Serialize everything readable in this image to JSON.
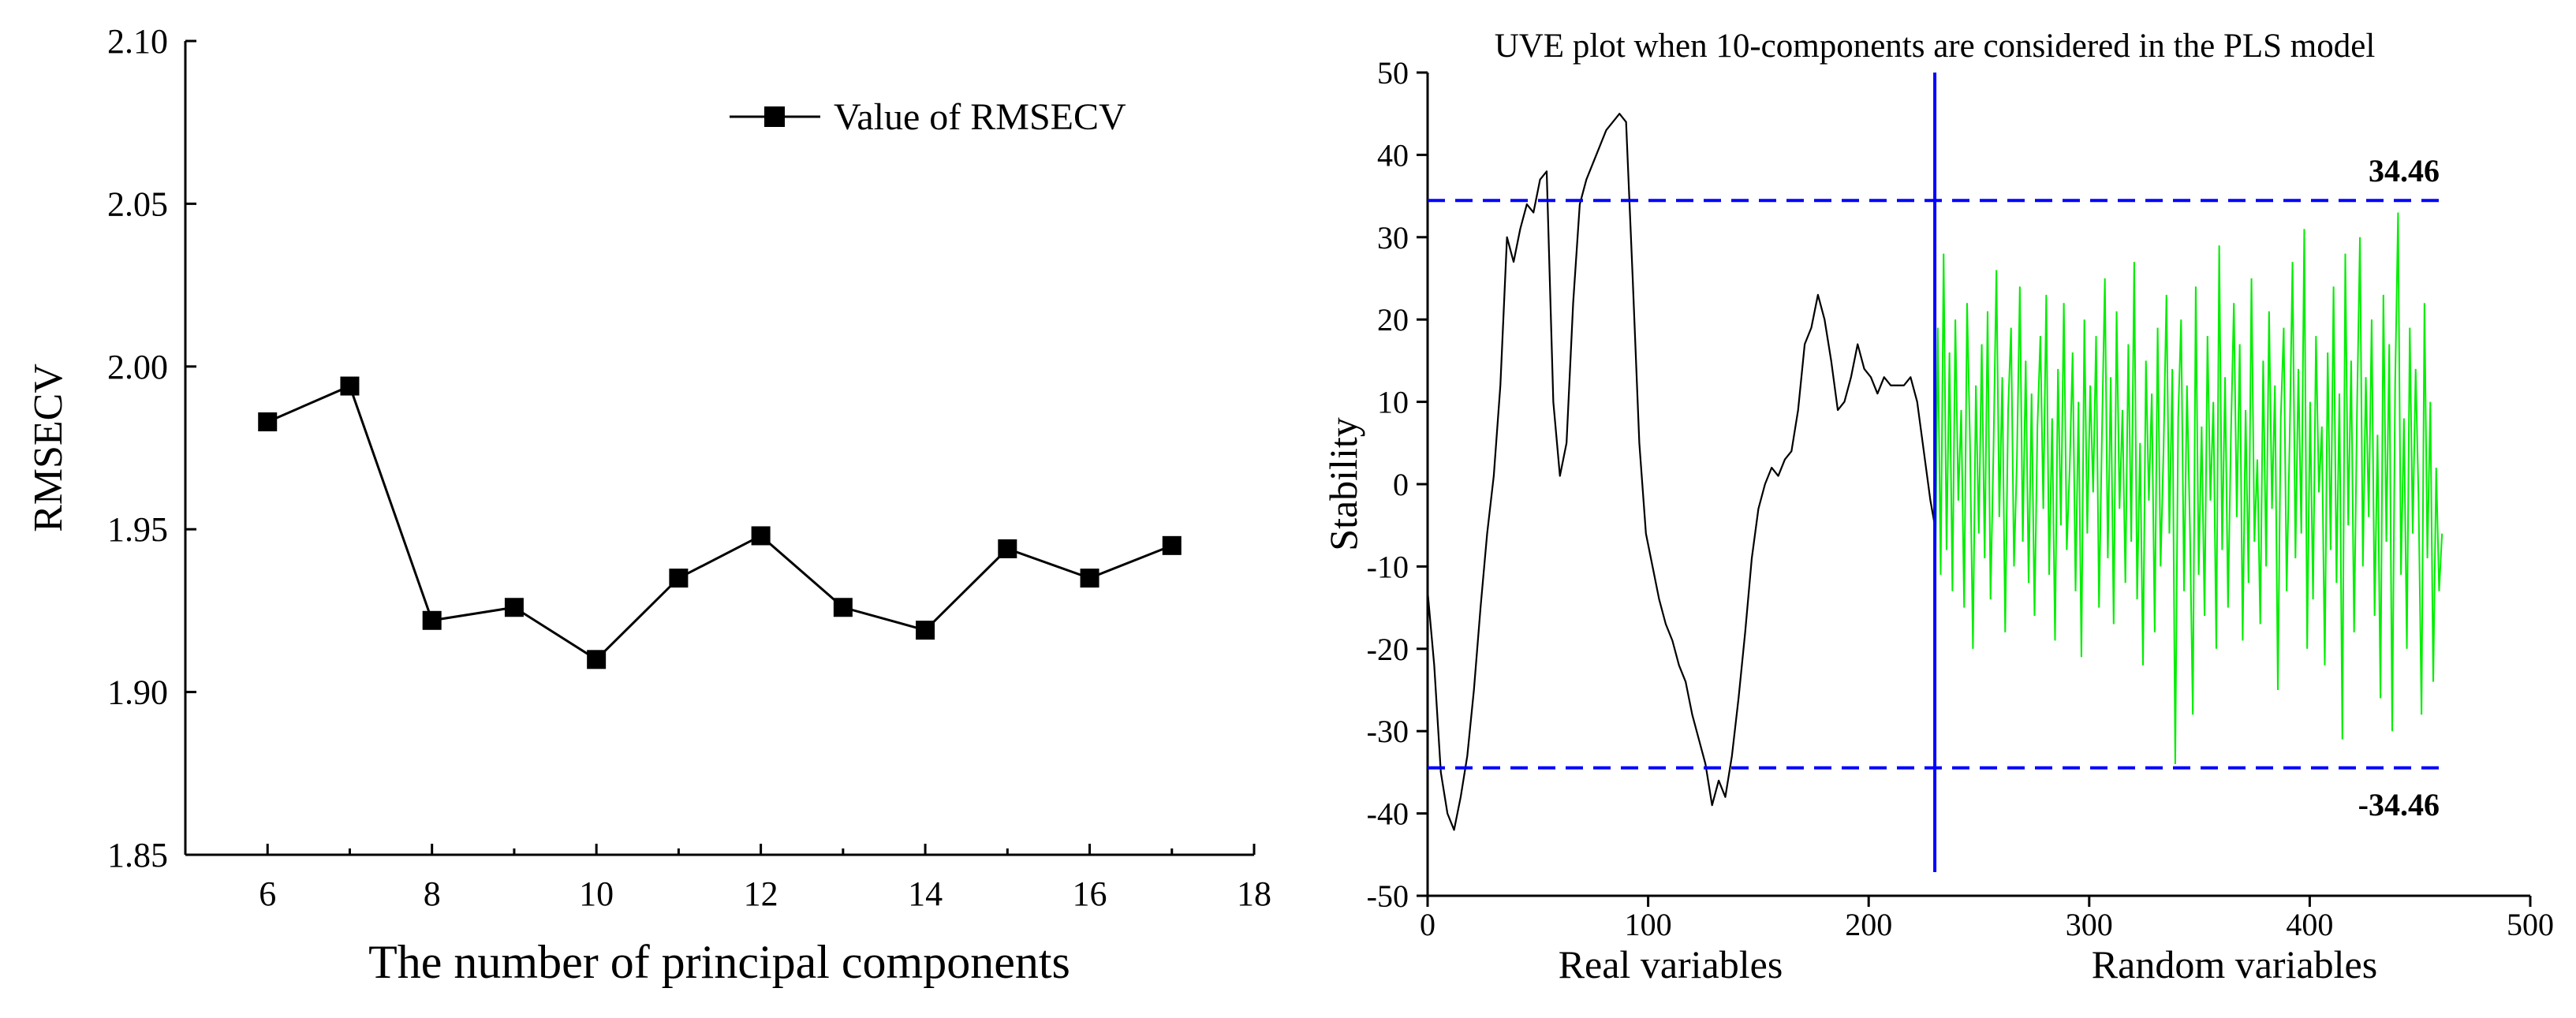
{
  "chart_data": [
    {
      "type": "line",
      "title": "",
      "xlabel": "The number of principal components",
      "ylabel": "RMSECV",
      "xlim": [
        5,
        18
      ],
      "ylim": [
        1.85,
        2.1
      ],
      "x_ticks": [
        {
          "v": 6,
          "label": "6"
        },
        {
          "v": 8,
          "label": "8"
        },
        {
          "v": 10,
          "label": "10"
        },
        {
          "v": 12,
          "label": "12"
        },
        {
          "v": 14,
          "label": "14"
        },
        {
          "v": 16,
          "label": "16"
        },
        {
          "v": 18,
          "label": "18"
        }
      ],
      "y_ticks": [
        {
          "v": 1.85,
          "label": "1.85"
        },
        {
          "v": 1.9,
          "label": "1.90"
        },
        {
          "v": 1.95,
          "label": "1.95"
        },
        {
          "v": 2.0,
          "label": "2.00"
        },
        {
          "v": 2.05,
          "label": "2.05"
        },
        {
          "v": 2.1,
          "label": "2.10"
        }
      ],
      "legend": "Value of RMSECV",
      "legend_position": "top-right",
      "series": [
        {
          "name": "Value of RMSECV",
          "color": "#000000",
          "x": [
            6,
            7,
            8,
            9,
            10,
            11,
            12,
            13,
            14,
            15,
            16,
            17
          ],
          "y": [
            1.983,
            1.994,
            1.922,
            1.926,
            1.91,
            1.935,
            1.948,
            1.926,
            1.919,
            1.944,
            1.935,
            1.945
          ]
        }
      ]
    },
    {
      "type": "line",
      "title": "UVE plot when 10-components are considered in the PLS model",
      "xlabel_left": "Real variables",
      "xlabel_right": "Random variables",
      "ylabel": "Stability",
      "xlim": [
        0,
        500
      ],
      "ylim": [
        -50,
        50
      ],
      "x_ticks": [
        {
          "v": 0,
          "label": "0"
        },
        {
          "v": 100,
          "label": "100"
        },
        {
          "v": 200,
          "label": "200"
        },
        {
          "v": 300,
          "label": "300"
        },
        {
          "v": 400,
          "label": "400"
        },
        {
          "v": 500,
          "label": "500"
        }
      ],
      "y_ticks": [
        {
          "v": -50,
          "label": "-50"
        },
        {
          "v": -40,
          "label": "-40"
        },
        {
          "v": -30,
          "label": "-30"
        },
        {
          "v": -20,
          "label": "-20"
        },
        {
          "v": -10,
          "label": "-10"
        },
        {
          "v": 0,
          "label": "0"
        },
        {
          "v": 10,
          "label": "10"
        },
        {
          "v": 20,
          "label": "20"
        },
        {
          "v": 30,
          "label": "30"
        },
        {
          "v": 40,
          "label": "40"
        },
        {
          "v": 50,
          "label": "50"
        }
      ],
      "threshold_upper": 34.46,
      "threshold_lower": -34.46,
      "threshold_upper_label": "34.46",
      "threshold_lower_label": "-34.46",
      "divider_x": 230,
      "divider_color": "#0000ff",
      "threshold_color": "#0000ff",
      "real_color": "#000000",
      "random_color": "#00ee00",
      "real_points": [
        [
          0,
          -13
        ],
        [
          3,
          -22
        ],
        [
          6,
          -35
        ],
        [
          9,
          -40
        ],
        [
          12,
          -42
        ],
        [
          15,
          -38
        ],
        [
          18,
          -33
        ],
        [
          21,
          -25
        ],
        [
          24,
          -15
        ],
        [
          27,
          -6
        ],
        [
          30,
          1
        ],
        [
          33,
          12
        ],
        [
          36,
          30
        ],
        [
          39,
          27
        ],
        [
          42,
          31
        ],
        [
          45,
          34
        ],
        [
          48,
          33
        ],
        [
          51,
          37
        ],
        [
          54,
          38
        ],
        [
          57,
          10
        ],
        [
          60,
          1
        ],
        [
          63,
          5
        ],
        [
          66,
          22
        ],
        [
          69,
          34
        ],
        [
          72,
          37
        ],
        [
          75,
          39
        ],
        [
          78,
          41
        ],
        [
          81,
          43
        ],
        [
          84,
          44
        ],
        [
          87,
          45
        ],
        [
          90,
          44
        ],
        [
          93,
          25
        ],
        [
          96,
          5
        ],
        [
          99,
          -6
        ],
        [
          102,
          -10
        ],
        [
          105,
          -14
        ],
        [
          108,
          -17
        ],
        [
          111,
          -19
        ],
        [
          114,
          -22
        ],
        [
          117,
          -24
        ],
        [
          120,
          -28
        ],
        [
          123,
          -31
        ],
        [
          126,
          -34
        ],
        [
          129,
          -39
        ],
        [
          132,
          -36
        ],
        [
          135,
          -38
        ],
        [
          138,
          -33
        ],
        [
          141,
          -26
        ],
        [
          144,
          -18
        ],
        [
          147,
          -9
        ],
        [
          150,
          -3
        ],
        [
          153,
          0
        ],
        [
          156,
          2
        ],
        [
          159,
          1
        ],
        [
          162,
          3
        ],
        [
          165,
          4
        ],
        [
          168,
          9
        ],
        [
          171,
          17
        ],
        [
          174,
          19
        ],
        [
          177,
          23
        ],
        [
          180,
          20
        ],
        [
          183,
          15
        ],
        [
          186,
          9
        ],
        [
          189,
          10
        ],
        [
          192,
          13
        ],
        [
          195,
          17
        ],
        [
          198,
          14
        ],
        [
          201,
          13
        ],
        [
          204,
          11
        ],
        [
          207,
          13
        ],
        [
          210,
          12
        ],
        [
          213,
          12
        ],
        [
          216,
          12
        ],
        [
          219,
          13
        ],
        [
          222,
          10
        ],
        [
          225,
          4
        ],
        [
          228,
          -2
        ],
        [
          230,
          -5
        ]
      ],
      "random_values": [
        -18,
        19,
        -11,
        28,
        -8,
        16,
        -13,
        20,
        -2,
        9,
        -15,
        22,
        5,
        -20,
        12,
        -6,
        17,
        -9,
        21,
        -14,
        4,
        26,
        -4,
        13,
        -18,
        9,
        19,
        -10,
        3,
        24,
        -7,
        15,
        -12,
        11,
        -16,
        7,
        18,
        -3,
        23,
        -11,
        8,
        -19,
        14,
        -5,
        22,
        -8,
        2,
        16,
        -13,
        10,
        -21,
        20,
        -6,
        12,
        -1,
        18,
        -15,
        6,
        25,
        -9,
        13,
        -17,
        21,
        -3,
        9,
        -12,
        17,
        -7,
        27,
        -14,
        5,
        -22,
        15,
        -2,
        11,
        -18,
        19,
        -10,
        4,
        23,
        -6,
        14,
        -34,
        8,
        20,
        -13,
        12,
        -5,
        -28,
        24,
        -11,
        7,
        -16,
        18,
        -2,
        10,
        -20,
        29,
        -8,
        13,
        -15,
        6,
        22,
        -4,
        17,
        -19,
        9,
        -12,
        25,
        -7,
        3,
        -17,
        15,
        -10,
        21,
        -3,
        12,
        -25,
        8,
        19,
        -13,
        5,
        27,
        -9,
        14,
        -6,
        31,
        -20,
        10,
        -14,
        18,
        -1,
        7,
        -22,
        16,
        -8,
        24,
        -12,
        11,
        -31,
        28,
        -5,
        15,
        -18,
        9,
        30,
        -10,
        13,
        -4,
        20,
        -16,
        6,
        -26,
        23,
        -7,
        17,
        -30,
        12,
        33,
        -11,
        8,
        -20,
        19,
        -6,
        14,
        -2,
        -28,
        22,
        -9,
        10,
        -24,
        2,
        -13,
        -6
      ]
    }
  ]
}
